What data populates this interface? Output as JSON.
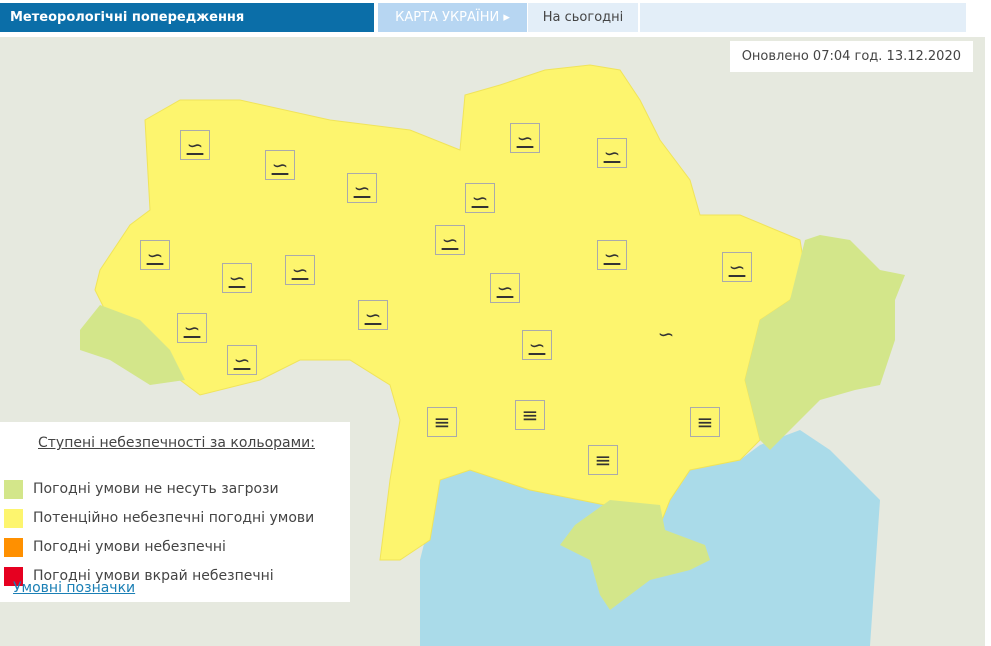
{
  "header": {
    "title": "Метеорологічні попередження",
    "tab_map": "КАРТА УКРАЇНИ ▸",
    "tab_today": "На сьогодні"
  },
  "updated": "Оновлено 07:04 год. 13.12.2020",
  "colors": {
    "no_threat": "#d3e68a",
    "potential": "#fdf56e",
    "dangerous": "#ff9000",
    "extreme": "#e60020",
    "sea": "#aadbe9",
    "land": "#e6e9df"
  },
  "legend": {
    "title": "Ступені небезпечності за кольорами:",
    "items": [
      {
        "label": "Погодні умови не несуть загрози",
        "color": "#d3e68a"
      },
      {
        "label": "Потенційно небезпечні погодні умови",
        "color": "#fdf56e"
      },
      {
        "label": "Погодні умови небезпечні",
        "color": "#ff9000"
      },
      {
        "label": "Погодні умови вкрай небезпечні",
        "color": "#e60020"
      }
    ]
  },
  "legend_link": "Умовні позначки",
  "icons": {
    "ice": "glaze-ice-icon",
    "fog": "fog-icon"
  }
}
